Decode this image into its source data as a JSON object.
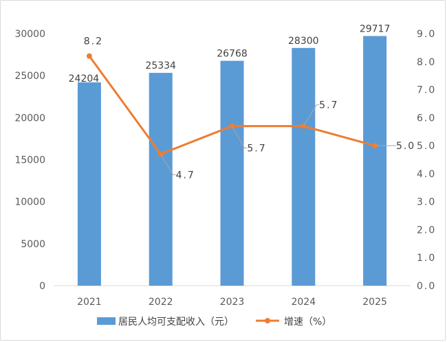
{
  "chart_data": {
    "type": "bar",
    "categories": [
      "2021",
      "2022",
      "2023",
      "2024",
      "2025"
    ],
    "series": [
      {
        "name": "居民人均可支配收入（元）",
        "type": "bar",
        "axis": "left",
        "values": [
          24204,
          25334,
          26768,
          28300,
          29717
        ],
        "labels": [
          "24204",
          "25334",
          "26768",
          "28300",
          "29717"
        ],
        "color": "#5b9bd5"
      },
      {
        "name": "增速（%）",
        "type": "line",
        "axis": "right",
        "values": [
          8.2,
          4.7,
          5.7,
          5.7,
          5.0
        ],
        "labels": [
          "8.2",
          "4.7",
          "5.7",
          "5.7",
          "5.0"
        ],
        "color": "#ed7d31"
      }
    ],
    "y_left": {
      "range": [
        0,
        30000
      ],
      "ticks": [
        "0",
        "5000",
        "10000",
        "15000",
        "20000",
        "25000",
        "30000"
      ]
    },
    "y_right": {
      "range": [
        0,
        9
      ],
      "ticks": [
        "0.0",
        "1.0",
        "2.0",
        "3.0",
        "4.0",
        "5.0",
        "6.0",
        "7.0",
        "8.0",
        "9.0"
      ]
    },
    "grid": false,
    "legend_position": "bottom"
  }
}
